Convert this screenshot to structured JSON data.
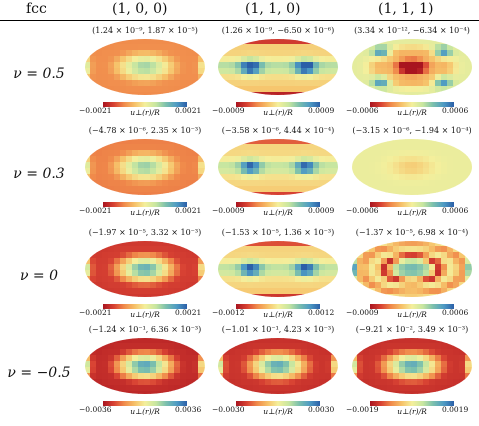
{
  "header": {
    "lattice": "fcc",
    "columns": [
      "(1, 0, 0)",
      "(1, 1, 0)",
      "(1, 1, 1)"
    ]
  },
  "colorbar_label": "u⊥(r)/R",
  "palette": [
    "#2b5fa8",
    "#4d9ac4",
    "#7cc0ad",
    "#c7e6a0",
    "#f4ef9c",
    "#f6c26a",
    "#f08a4b",
    "#d84233",
    "#a8141f"
  ],
  "rows": [
    {
      "label": "ν = 0.5",
      "panels": [
        {
          "range": "(1.24 × 10⁻⁹, 1.87 × 10⁻⁵)",
          "min": "−0.0021",
          "max": "0.0021",
          "pattern": "ring",
          "amp": 0.55
        },
        {
          "range": "(1.26 × 10⁻⁹, −6.50 × 10⁻⁶)",
          "min": "−0.0009",
          "max": "0.0009",
          "pattern": "bands",
          "amp": 0.85
        },
        {
          "range": "(3.34 × 10⁻¹², −6.34 × 10⁻⁴)",
          "min": "−0.0006",
          "max": "0.0006",
          "pattern": "hot",
          "amp": 0.9
        }
      ]
    },
    {
      "label": "ν = 0.3",
      "panels": [
        {
          "range": "(−4.78 × 10⁻⁶, 2.35 × 10⁻³)",
          "min": "−0.0021",
          "max": "0.0021",
          "pattern": "ring",
          "amp": 0.6
        },
        {
          "range": "(−3.58 × 10⁻⁶, 4.44 × 10⁻⁴)",
          "min": "−0.0009",
          "max": "0.0009",
          "pattern": "bands",
          "amp": 0.7
        },
        {
          "range": "(−3.15 × 10⁻⁶, −1.94 × 10⁻⁴)",
          "min": "−0.0006",
          "max": "0.0006",
          "pattern": "faint",
          "amp": 0.35
        }
      ]
    },
    {
      "label": "ν = 0",
      "panels": [
        {
          "range": "(−1.97 × 10⁻⁵, 3.32 × 10⁻³)",
          "min": "−0.0021",
          "max": "0.0021",
          "pattern": "ring",
          "amp": 0.9
        },
        {
          "range": "(−1.53 × 10⁻⁵, 1.36 × 10⁻³)",
          "min": "−0.0012",
          "max": "0.0012",
          "pattern": "bands",
          "amp": 0.75
        },
        {
          "range": "(−1.37 × 10⁻⁵, 6.98 × 10⁻⁴)",
          "min": "−0.0009",
          "max": "0.0006",
          "pattern": "mixed",
          "amp": 0.8
        }
      ]
    },
    {
      "label": "ν = −0.5",
      "panels": [
        {
          "range": "(−1.24 × 10⁻¹, 6.36 × 10⁻³)",
          "min": "−0.0036",
          "max": "0.0036",
          "pattern": "ring",
          "amp": 1.0
        },
        {
          "range": "(−1.01 × 10⁻¹, 4.23 × 10⁻³)",
          "min": "−0.0030",
          "max": "0.0030",
          "pattern": "ring",
          "amp": 0.95
        },
        {
          "range": "(−9.21 × 10⁻², 3.49 × 10⁻³)",
          "min": "−0.0019",
          "max": "0.0019",
          "pattern": "ring",
          "amp": 0.95
        }
      ]
    }
  ]
}
